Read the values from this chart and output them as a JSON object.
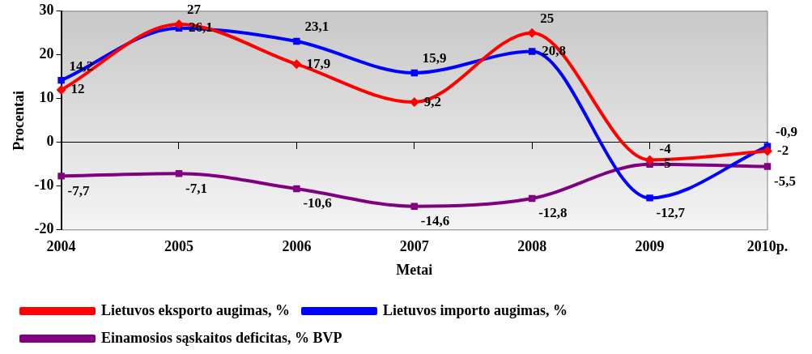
{
  "chart_data": {
    "type": "line",
    "xlabel": "Metai",
    "ylabel": "Procentai",
    "categories": [
      "2004",
      "2005",
      "2006",
      "2007",
      "2008",
      "2009",
      "2010p."
    ],
    "series": [
      {
        "name": "Lietuvos eksporto augimas, %",
        "color": "#ff0000",
        "marker": "diamond",
        "values": [
          12,
          27,
          17.9,
          9.2,
          25,
          -4,
          -2
        ],
        "value_labels": [
          "12",
          "27",
          "17,9",
          "9,2",
          "25",
          "-4",
          "-2"
        ]
      },
      {
        "name": "Lietuvos importo augimas, %",
        "color": "#0000ff",
        "marker": "square",
        "values": [
          14.2,
          26.1,
          23.1,
          15.9,
          20.8,
          -12.7,
          -0.9
        ],
        "value_labels": [
          "14,2",
          "26,1",
          "23,1",
          "15,9",
          "20,8",
          "-12,7",
          "-0,9"
        ]
      },
      {
        "name": "Einamosios sąskaitos deficitas, % BVP",
        "color": "#800080",
        "marker": "square",
        "values": [
          -7.7,
          -7.1,
          -10.6,
          -14.6,
          -12.8,
          -5,
          -5.5
        ],
        "value_labels": [
          "-7,7",
          "-7,1",
          "-10,6",
          "-14,6",
          "-12,8",
          "-5",
          "-5,5"
        ]
      }
    ],
    "ylim": [
      -20,
      30
    ],
    "yticks": [
      -20,
      -10,
      0,
      10,
      20,
      30
    ],
    "legend": "bottom",
    "line_style": "solid"
  }
}
